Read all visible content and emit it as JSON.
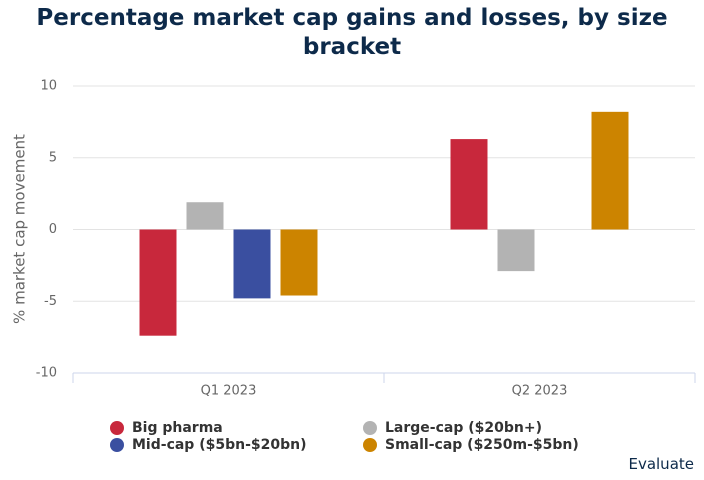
{
  "chart_data": {
    "type": "bar",
    "title": "Percentage market cap gains and losses, by size bracket",
    "y_label": "% market cap movement",
    "source": "Evaluate",
    "categories": [
      "Q1 2023",
      "Q2 2023"
    ],
    "series": [
      {
        "name": "Big pharma",
        "color": "#c8283c",
        "values": [
          -7.4,
          6.3
        ]
      },
      {
        "name": "Large-cap ($20bn+)",
        "color": "#b3b3b3",
        "values": [
          1.9,
          -2.9
        ]
      },
      {
        "name": "Mid-cap ($5bn-$20bn)",
        "color": "#3a4fa0",
        "values": [
          -4.8,
          0
        ]
      },
      {
        "name": "Small-cap ($250m-$5bn)",
        "color": "#cc8400",
        "values": [
          -4.6,
          8.2
        ]
      }
    ],
    "ylim": [
      -10,
      10
    ],
    "yticks": [
      -10,
      -5,
      0,
      5,
      10
    ],
    "grid": true
  }
}
